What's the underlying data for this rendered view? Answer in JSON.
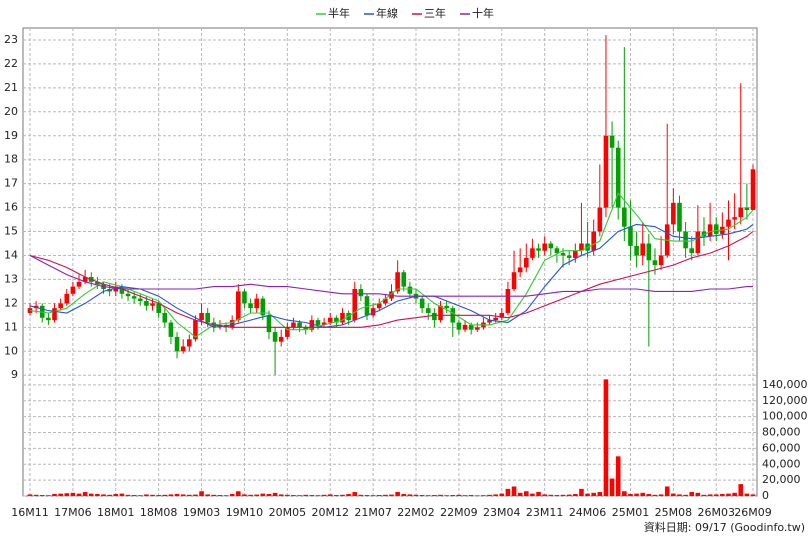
{
  "chart_data": {
    "type": "candlestick",
    "legend": {
      "position": "top"
    },
    "footer": "資料日期: 09/17  (Goodinfo.tw)",
    "up_color": "#ff0000",
    "down_color": "#00a000",
    "categories": [
      "16M11",
      null,
      null,
      null,
      null,
      null,
      null,
      "17M06",
      null,
      null,
      null,
      null,
      null,
      null,
      "18M01",
      null,
      null,
      null,
      null,
      null,
      null,
      "18M08",
      null,
      null,
      null,
      null,
      null,
      null,
      "19M03",
      null,
      null,
      null,
      null,
      null,
      null,
      "19M10",
      null,
      null,
      null,
      null,
      null,
      null,
      "20M05",
      null,
      null,
      null,
      null,
      null,
      null,
      "20M12",
      null,
      null,
      null,
      null,
      null,
      null,
      "21M07",
      null,
      null,
      null,
      null,
      null,
      null,
      "22M02",
      null,
      null,
      null,
      null,
      null,
      null,
      "22M09",
      null,
      null,
      null,
      null,
      null,
      null,
      "23M04",
      null,
      null,
      null,
      null,
      null,
      null,
      "23M11",
      null,
      null,
      null,
      null,
      null,
      null,
      "24M06",
      null,
      null,
      null,
      null,
      null,
      null,
      "25M01",
      null,
      null,
      null,
      null,
      null,
      null,
      "25M08",
      null,
      null,
      null,
      null,
      null,
      null,
      "26M03",
      null,
      null,
      null,
      null,
      null,
      "26M09"
    ],
    "open": [
      11.6,
      11.8,
      11.9,
      11.4,
      11.3,
      11.8,
      12.0,
      12.4,
      12.7,
      12.9,
      13.1,
      12.9,
      12.8,
      12.6,
      12.5,
      12.7,
      12.4,
      12.3,
      12.2,
      12.1,
      11.9,
      12.0,
      11.6,
      11.2,
      10.6,
      10.0,
      10.2,
      10.5,
      11.3,
      11.6,
      11.2,
      11.0,
      11.1,
      11.0,
      11.3,
      12.5,
      12.0,
      11.8,
      12.2,
      11.5,
      10.8,
      10.4,
      10.6,
      11.0,
      11.2,
      11.0,
      10.9,
      11.3,
      11.1,
      11.2,
      11.4,
      11.2,
      11.6,
      11.3,
      12.6,
      12.3,
      11.5,
      11.8,
      12.0,
      12.2,
      12.5,
      13.3,
      12.7,
      12.4,
      12.2,
      11.8,
      11.6,
      11.3,
      11.9,
      11.8,
      11.2,
      10.9,
      11.1,
      10.9,
      11.0,
      11.2,
      11.3,
      11.4,
      11.6,
      12.6,
      13.3,
      13.5,
      13.9,
      14.3,
      14.2,
      14.5,
      14.3,
      14.1,
      14.0,
      13.9,
      14.2,
      14.5,
      14.2,
      15.0,
      16.0,
      19.0,
      18.5,
      16.0,
      15.2,
      14.4,
      14.0,
      14.5,
      13.8,
      13.6,
      14.0,
      15.3,
      16.2,
      15.0,
      14.3,
      14.1,
      15.0,
      14.8,
      15.3,
      14.9,
      15.2,
      15.5,
      15.6,
      16.0,
      15.9
    ],
    "high": [
      12.0,
      12.1,
      12.0,
      11.6,
      12.0,
      12.2,
      12.6,
      12.9,
      13.2,
      13.4,
      13.3,
      13.1,
      12.9,
      12.8,
      12.9,
      12.8,
      12.6,
      12.5,
      12.4,
      12.3,
      12.2,
      12.1,
      11.8,
      11.3,
      10.8,
      10.5,
      10.7,
      11.5,
      12.0,
      11.8,
      11.4,
      11.3,
      11.2,
      11.5,
      12.8,
      12.6,
      12.2,
      12.4,
      12.3,
      11.7,
      11.0,
      10.9,
      11.2,
      11.4,
      11.3,
      11.1,
      11.5,
      11.4,
      11.4,
      11.6,
      11.5,
      11.8,
      11.7,
      12.9,
      12.8,
      12.4,
      12.0,
      12.2,
      12.4,
      12.8,
      13.8,
      13.4,
      12.9,
      12.6,
      12.3,
      12.0,
      11.8,
      12.1,
      12.1,
      11.9,
      11.3,
      11.3,
      11.2,
      11.2,
      11.4,
      11.5,
      11.6,
      11.8,
      12.9,
      14.2,
      14.3,
      14.5,
      14.7,
      14.5,
      14.8,
      14.6,
      14.4,
      14.3,
      14.2,
      14.5,
      16.2,
      15.4,
      15.5,
      17.8,
      23.2,
      19.6,
      18.8,
      22.7,
      16.3,
      15.0,
      15.4,
      14.9,
      14.3,
      14.8,
      19.5,
      16.8,
      16.5,
      15.4,
      14.8,
      16.1,
      15.6,
      16.2,
      15.6,
      15.8,
      16.3,
      16.6,
      21.2,
      17.0,
      17.8
    ],
    "low": [
      11.5,
      11.6,
      11.2,
      11.1,
      11.2,
      11.7,
      11.9,
      12.3,
      12.6,
      12.8,
      12.7,
      12.6,
      12.4,
      12.3,
      12.3,
      12.2,
      12.1,
      12.0,
      11.9,
      11.7,
      11.7,
      11.4,
      11.0,
      10.3,
      9.7,
      9.9,
      10.0,
      10.4,
      11.1,
      11.0,
      10.8,
      10.9,
      10.8,
      10.9,
      11.2,
      11.8,
      11.6,
      11.6,
      11.3,
      10.5,
      9.0,
      10.2,
      10.5,
      10.9,
      10.8,
      10.7,
      10.8,
      10.9,
      11.0,
      11.1,
      11.0,
      11.1,
      11.1,
      11.2,
      12.1,
      11.3,
      11.4,
      11.7,
      11.9,
      12.1,
      12.4,
      12.5,
      12.2,
      12.0,
      11.6,
      11.3,
      11.0,
      11.2,
      11.6,
      10.6,
      10.7,
      10.8,
      10.7,
      10.8,
      10.9,
      11.1,
      11.2,
      11.3,
      11.5,
      12.5,
      13.1,
      13.3,
      13.8,
      13.9,
      14.0,
      14.0,
      13.7,
      13.5,
      13.6,
      13.7,
      14.0,
      13.9,
      14.0,
      14.8,
      15.6,
      16.0,
      15.5,
      14.6,
      13.8,
      13.5,
      13.6,
      10.2,
      13.2,
      13.4,
      13.9,
      14.9,
      14.6,
      13.9,
      13.8,
      14.0,
      14.4,
      14.6,
      14.6,
      14.7,
      13.8,
      15.1,
      15.3,
      15.5,
      15.9
    ],
    "close": [
      11.8,
      11.9,
      11.4,
      11.3,
      11.8,
      12.0,
      12.4,
      12.7,
      12.9,
      13.1,
      12.9,
      12.8,
      12.6,
      12.5,
      12.7,
      12.4,
      12.3,
      12.2,
      12.1,
      11.9,
      12.0,
      11.6,
      11.2,
      10.6,
      10.0,
      10.2,
      10.5,
      11.3,
      11.6,
      11.2,
      11.0,
      11.1,
      11.0,
      11.3,
      12.5,
      12.0,
      11.8,
      12.2,
      11.5,
      10.8,
      10.4,
      10.6,
      11.0,
      11.2,
      11.0,
      10.9,
      11.3,
      11.1,
      11.2,
      11.4,
      11.2,
      11.6,
      11.3,
      12.6,
      12.3,
      11.5,
      11.8,
      12.0,
      12.2,
      12.5,
      13.3,
      12.7,
      12.4,
      12.2,
      11.8,
      11.6,
      11.3,
      11.9,
      11.8,
      11.2,
      10.9,
      11.1,
      10.9,
      11.0,
      11.2,
      11.3,
      11.4,
      11.6,
      12.6,
      13.3,
      13.5,
      13.9,
      14.3,
      14.2,
      14.5,
      14.3,
      14.1,
      14.0,
      13.9,
      14.2,
      14.5,
      14.2,
      15.0,
      16.0,
      19.0,
      18.5,
      16.0,
      15.2,
      14.4,
      14.0,
      14.5,
      13.8,
      13.6,
      14.0,
      15.3,
      16.2,
      15.0,
      14.3,
      14.1,
      15.0,
      14.8,
      15.3,
      14.9,
      15.2,
      15.5,
      15.6,
      16.0,
      15.9,
      17.6
    ],
    "ylim": [
      8.8,
      23.5
    ],
    "yticks": [
      9,
      10,
      11,
      12,
      13,
      14,
      15,
      16,
      17,
      18,
      19,
      20,
      21,
      22,
      23
    ],
    "ma_x": [
      0,
      3,
      6,
      9,
      12,
      15,
      18,
      21,
      24,
      27,
      30,
      33,
      36,
      39,
      42,
      45,
      48,
      51,
      54,
      57,
      60,
      63,
      66,
      69,
      72,
      75,
      78,
      81,
      84,
      87,
      90,
      93,
      96,
      99,
      102,
      105,
      108,
      111,
      114,
      117,
      118
    ],
    "ma": [
      {
        "name": "半年",
        "color": "#33cc33",
        "values": [
          11.7,
          11.6,
          11.8,
          12.4,
          12.9,
          12.7,
          12.4,
          12.1,
          11.2,
          10.6,
          11.1,
          11.2,
          11.6,
          11.6,
          10.9,
          10.9,
          11.1,
          11.3,
          11.8,
          12.0,
          12.6,
          12.6,
          12.0,
          11.6,
          11.1,
          11.1,
          11.3,
          12.4,
          13.8,
          14.2,
          14.2,
          14.6,
          16.6,
          15.7,
          14.7,
          14.6,
          14.6,
          15.0,
          15.1,
          15.6,
          15.9
        ]
      },
      {
        "name": "年線",
        "color": "#2255dd",
        "values": [
          11.9,
          11.7,
          11.6,
          12.0,
          12.5,
          12.7,
          12.6,
          12.3,
          11.8,
          11.4,
          11.0,
          11.1,
          11.3,
          11.5,
          11.3,
          11.2,
          11.0,
          11.1,
          11.4,
          11.7,
          12.1,
          12.3,
          12.3,
          12.0,
          11.7,
          11.3,
          11.2,
          11.7,
          12.7,
          13.6,
          14.0,
          14.3,
          15.0,
          15.3,
          15.2,
          14.8,
          14.7,
          14.8,
          14.9,
          15.1,
          15.3
        ]
      },
      {
        "name": "三年",
        "color": "#cc1155",
        "values": [
          14.0,
          13.8,
          13.5,
          13.1,
          12.8,
          12.6,
          12.3,
          12.0,
          11.6,
          11.3,
          11.1,
          11.0,
          11.0,
          11.0,
          11.0,
          11.0,
          11.0,
          11.0,
          11.0,
          11.1,
          11.3,
          11.4,
          11.5,
          11.5,
          11.5,
          11.5,
          11.4,
          11.6,
          11.9,
          12.2,
          12.5,
          12.8,
          13.0,
          13.2,
          13.4,
          13.6,
          13.9,
          14.1,
          14.4,
          14.8,
          15.0
        ]
      },
      {
        "name": "十年",
        "color": "#8822bb",
        "values": [
          14.0,
          13.6,
          13.2,
          12.9,
          12.7,
          12.6,
          12.6,
          12.6,
          12.6,
          12.6,
          12.7,
          12.7,
          12.8,
          12.7,
          12.7,
          12.6,
          12.5,
          12.4,
          12.4,
          12.4,
          12.3,
          12.3,
          12.3,
          12.3,
          12.3,
          12.3,
          12.3,
          12.3,
          12.4,
          12.5,
          12.5,
          12.6,
          12.6,
          12.6,
          12.5,
          12.5,
          12.5,
          12.6,
          12.6,
          12.7,
          12.7
        ]
      }
    ],
    "volume": {
      "color": "#ff0000",
      "values": [
        2000,
        1500,
        1200,
        1000,
        2500,
        3000,
        3500,
        4000,
        3000,
        5000,
        3000,
        2500,
        2000,
        1500,
        2500,
        3000,
        1500,
        1200,
        1000,
        2000,
        1500,
        1200,
        1500,
        2000,
        2500,
        2000,
        1500,
        1800,
        6000,
        2000,
        1500,
        1200,
        1000,
        2500,
        6000,
        2000,
        1500,
        1800,
        3000,
        2500,
        4000,
        2000,
        1500,
        1200,
        1000,
        1500,
        1200,
        1000,
        1500,
        2000,
        1200,
        1500,
        2500,
        5000,
        1500,
        1200,
        1000,
        1200,
        1500,
        1800,
        5000,
        2500,
        2000,
        1500,
        1200,
        1000,
        1200,
        1500,
        1000,
        1200,
        1500,
        1000,
        1200,
        800,
        1000,
        1500,
        2000,
        3000,
        9000,
        12000,
        4000,
        6000,
        3000,
        5000,
        2000,
        1500,
        1200,
        1500,
        1800,
        2500,
        9000,
        3000,
        4000,
        5000,
        147000,
        22000,
        50000,
        6000,
        2500,
        3000,
        4000,
        2500,
        1500,
        2000,
        12000,
        3000,
        2000,
        1500,
        5000,
        4000,
        1500,
        2000,
        2000,
        2500,
        3000,
        4000,
        15000,
        3000,
        2000
      ],
      "ylim": [
        0,
        150000
      ],
      "yticks": [
        0,
        {
          "value": 20000,
          "label": "20,000"
        },
        {
          "value": 40000,
          "label": "40,000"
        },
        {
          "value": 60000,
          "label": "60,000"
        },
        {
          "value": 80000,
          "label": "80,000"
        },
        {
          "value": 100000,
          "label": "100,000"
        },
        {
          "value": 120000,
          "label": "120,000"
        },
        {
          "value": 140000,
          "label": "140,000"
        }
      ]
    }
  }
}
